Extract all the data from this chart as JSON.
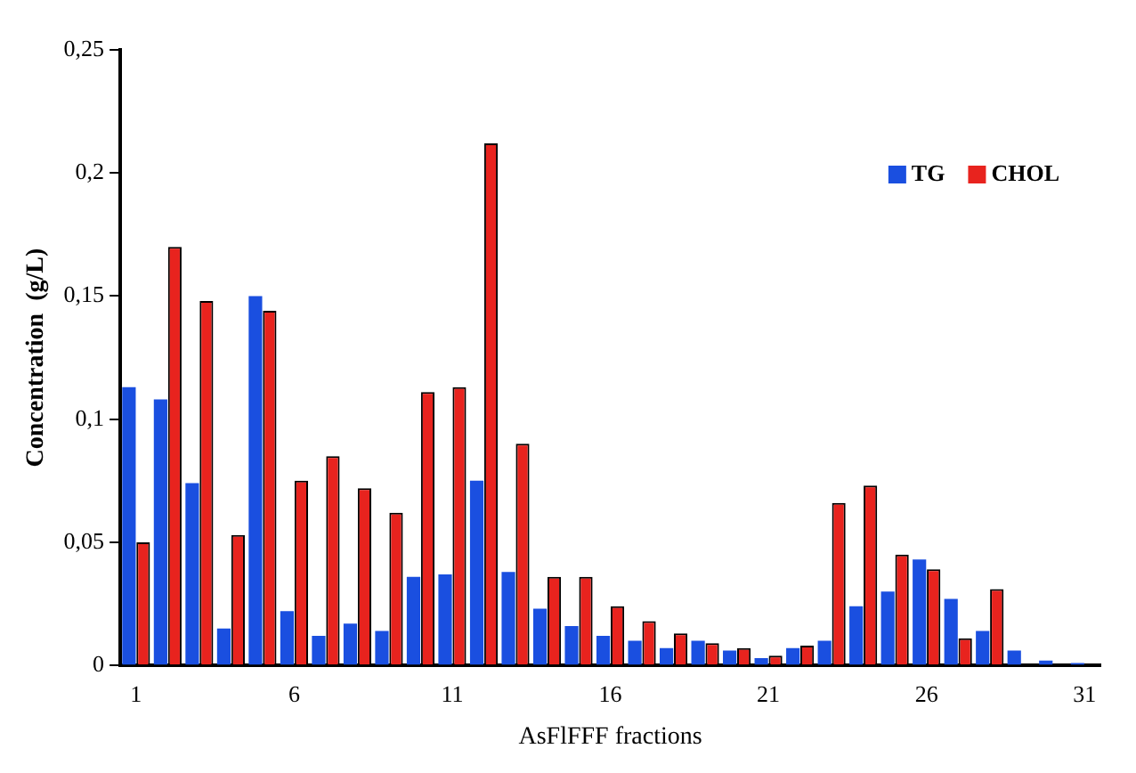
{
  "chart_data": {
    "type": "bar",
    "xlabel": "AsFlFFF fractions",
    "ylabel": "Concentration  (g/L)",
    "categories": [
      "1",
      null,
      null,
      null,
      null,
      "6",
      null,
      null,
      null,
      null,
      "11",
      null,
      null,
      null,
      null,
      "16",
      null,
      null,
      null,
      null,
      "21",
      null,
      null,
      null,
      null,
      "26",
      null,
      null,
      null,
      null,
      "31"
    ],
    "series": [
      {
        "name": "TG",
        "color": "#1a4fe0",
        "values": [
          0.113,
          0.108,
          0.074,
          0.015,
          0.15,
          0.022,
          0.012,
          0.017,
          0.014,
          0.036,
          0.037,
          0.075,
          0.038,
          0.023,
          0.016,
          0.012,
          0.01,
          0.007,
          0.01,
          0.006,
          0.003,
          0.007,
          0.01,
          0.024,
          0.03,
          0.043,
          0.027,
          0.014,
          0.006,
          0.002,
          0.001
        ]
      },
      {
        "name": "CHOL",
        "color": "#e8231e",
        "values": [
          0.05,
          0.17,
          0.148,
          0.053,
          0.144,
          0.075,
          0.085,
          0.072,
          0.062,
          0.111,
          0.113,
          0.212,
          0.09,
          0.036,
          0.036,
          0.024,
          0.018,
          0.013,
          0.009,
          0.007,
          0.004,
          0.008,
          0.066,
          0.073,
          0.045,
          0.039,
          0.011,
          0.031,
          null,
          null,
          null
        ]
      }
    ],
    "ylim": [
      0,
      0.25
    ],
    "yticks": [
      0,
      {
        "value": 0.05,
        "label": "0,05"
      },
      {
        "value": 0.1,
        "label": "0,1"
      },
      {
        "value": 0.15,
        "label": "0,15"
      },
      {
        "value": 0.2,
        "label": "0,2"
      },
      {
        "value": 0.25,
        "label": "0,25"
      }
    ],
    "grid": false,
    "legend": "top right"
  }
}
